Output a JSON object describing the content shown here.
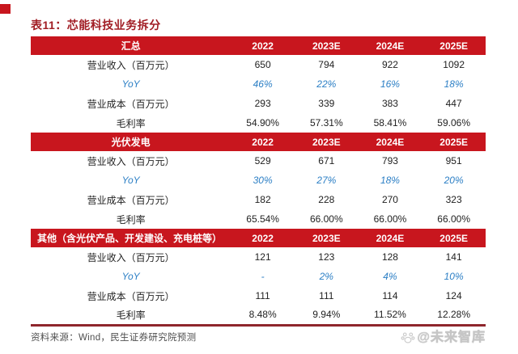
{
  "title": "表11：芯能科技业务拆分",
  "colors": {
    "accent": "#c8161e",
    "title-red": "#a11d24",
    "yoy-blue": "#2c7fc5",
    "line-red": "#8f262c",
    "watermark": "#d2d2d2"
  },
  "table": {
    "columns": [
      "2022",
      "2023E",
      "2024E",
      "2025E"
    ],
    "sections": [
      {
        "header": "汇总",
        "header_align": "center",
        "rows": [
          {
            "label": "营业收入（百万元）",
            "type": "normal",
            "values": [
              "650",
              "794",
              "922",
              "1092"
            ]
          },
          {
            "label": "YoY",
            "type": "yoy",
            "values": [
              "46%",
              "22%",
              "16%",
              "18%"
            ]
          },
          {
            "label": "营业成本（百万元）",
            "type": "normal",
            "values": [
              "293",
              "339",
              "383",
              "447"
            ]
          },
          {
            "label": "毛利率",
            "type": "normal",
            "values": [
              "54.90%",
              "57.31%",
              "58.41%",
              "59.06%"
            ]
          }
        ]
      },
      {
        "header": "光伏发电",
        "header_align": "center",
        "rows": [
          {
            "label": "营业收入（百万元）",
            "type": "normal",
            "values": [
              "529",
              "671",
              "793",
              "951"
            ]
          },
          {
            "label": "YoY",
            "type": "yoy",
            "values": [
              "30%",
              "27%",
              "18%",
              "20%"
            ]
          },
          {
            "label": "营业成本（百万元）",
            "type": "normal",
            "values": [
              "182",
              "228",
              "270",
              "323"
            ]
          },
          {
            "label": "毛利率",
            "type": "normal",
            "values": [
              "65.54%",
              "66.00%",
              "66.00%",
              "66.00%"
            ]
          }
        ]
      },
      {
        "header": "其他（含光伏产品、开发建设、充电桩等）",
        "header_align": "left",
        "rows": [
          {
            "label": "营业收入（百万元）",
            "type": "normal",
            "values": [
              "121",
              "123",
              "128",
              "141"
            ]
          },
          {
            "label": "YoY",
            "type": "yoy",
            "values": [
              "-",
              "2%",
              "4%",
              "10%"
            ]
          },
          {
            "label": "营业成本（百万元）",
            "type": "normal",
            "values": [
              "111",
              "111",
              "114",
              "124"
            ]
          },
          {
            "label": "毛利率",
            "type": "normal",
            "values": [
              "8.48%",
              "9.94%",
              "11.52%",
              "12.28%"
            ]
          }
        ]
      }
    ]
  },
  "footer": {
    "source": "资料来源：Wind，民生证券研究院预测",
    "watermark": "@未来智库"
  }
}
